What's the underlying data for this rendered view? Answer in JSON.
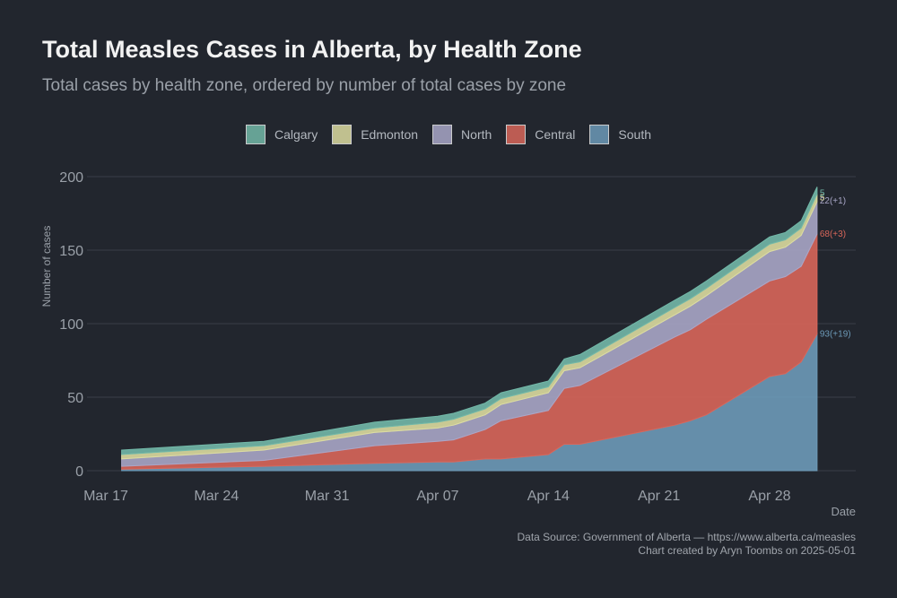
{
  "title": "Total Measles Cases in Alberta, by Health Zone",
  "subtitle": "Total cases by health zone, ordered by number of total cases by zone",
  "footer": {
    "source": "Data Source: Government of Alberta — https://www.alberta.ca/measles",
    "credit": "Chart created by Aryn Toombs on 2025-05-01"
  },
  "chart_data": {
    "type": "area",
    "stacked": true,
    "title": "Total Measles Cases in Alberta, by Health Zone",
    "subtitle": "Total cases by health zone, ordered by number of total cases by zone",
    "xlabel": "Date",
    "ylabel": "Number of cases",
    "ylim": [
      0,
      200
    ],
    "yticks": [
      0,
      50,
      100,
      150,
      200
    ],
    "xticks": [
      "Mar 17",
      "Mar 24",
      "Mar 31",
      "Apr 07",
      "Apr 14",
      "Apr 21",
      "Apr 28"
    ],
    "xlim": [
      "2025-03-17",
      "2025-05-04"
    ],
    "grid": true,
    "legend_position": "top",
    "x": [
      "2025-03-18",
      "2025-03-27",
      "2025-04-03",
      "2025-04-07",
      "2025-04-08",
      "2025-04-10",
      "2025-04-11",
      "2025-04-14",
      "2025-04-15",
      "2025-04-16",
      "2025-04-22",
      "2025-04-23",
      "2025-04-24",
      "2025-04-28",
      "2025-04-29",
      "2025-04-30",
      "2025-05-01"
    ],
    "series": [
      {
        "name": "South",
        "color": "#6d9ab8",
        "values": [
          1,
          3,
          5,
          6,
          6,
          8,
          8,
          11,
          18,
          18,
          31,
          34,
          38,
          64,
          66,
          74,
          93
        ],
        "end_label": "93(+19)"
      },
      {
        "name": "Central",
        "color": "#d8665a",
        "values": [
          2,
          4,
          12,
          14,
          15,
          20,
          26,
          30,
          38,
          40,
          60,
          62,
          65,
          65,
          66,
          65,
          68
        ],
        "end_label": "68(+3)"
      },
      {
        "name": "North",
        "color": "#a9a6c7",
        "values": [
          5,
          7,
          9,
          9,
          10,
          10,
          11,
          12,
          12,
          12,
          15,
          16,
          16,
          20,
          20,
          21,
          22
        ],
        "end_label": "22(+1)"
      },
      {
        "name": "Edmonton",
        "color": "#dcdca0",
        "values": [
          3,
          3,
          3,
          4,
          4,
          4,
          4,
          4,
          4,
          4,
          5,
          5,
          5,
          5,
          5,
          5,
          5
        ],
        "end_label": "5"
      },
      {
        "name": "Calgary",
        "color": "#72b8a8",
        "values": [
          3,
          3,
          4,
          4,
          4,
          4,
          4,
          4,
          4,
          5,
          5,
          5,
          5,
          5,
          5,
          5,
          5
        ],
        "end_label": "5"
      }
    ]
  }
}
